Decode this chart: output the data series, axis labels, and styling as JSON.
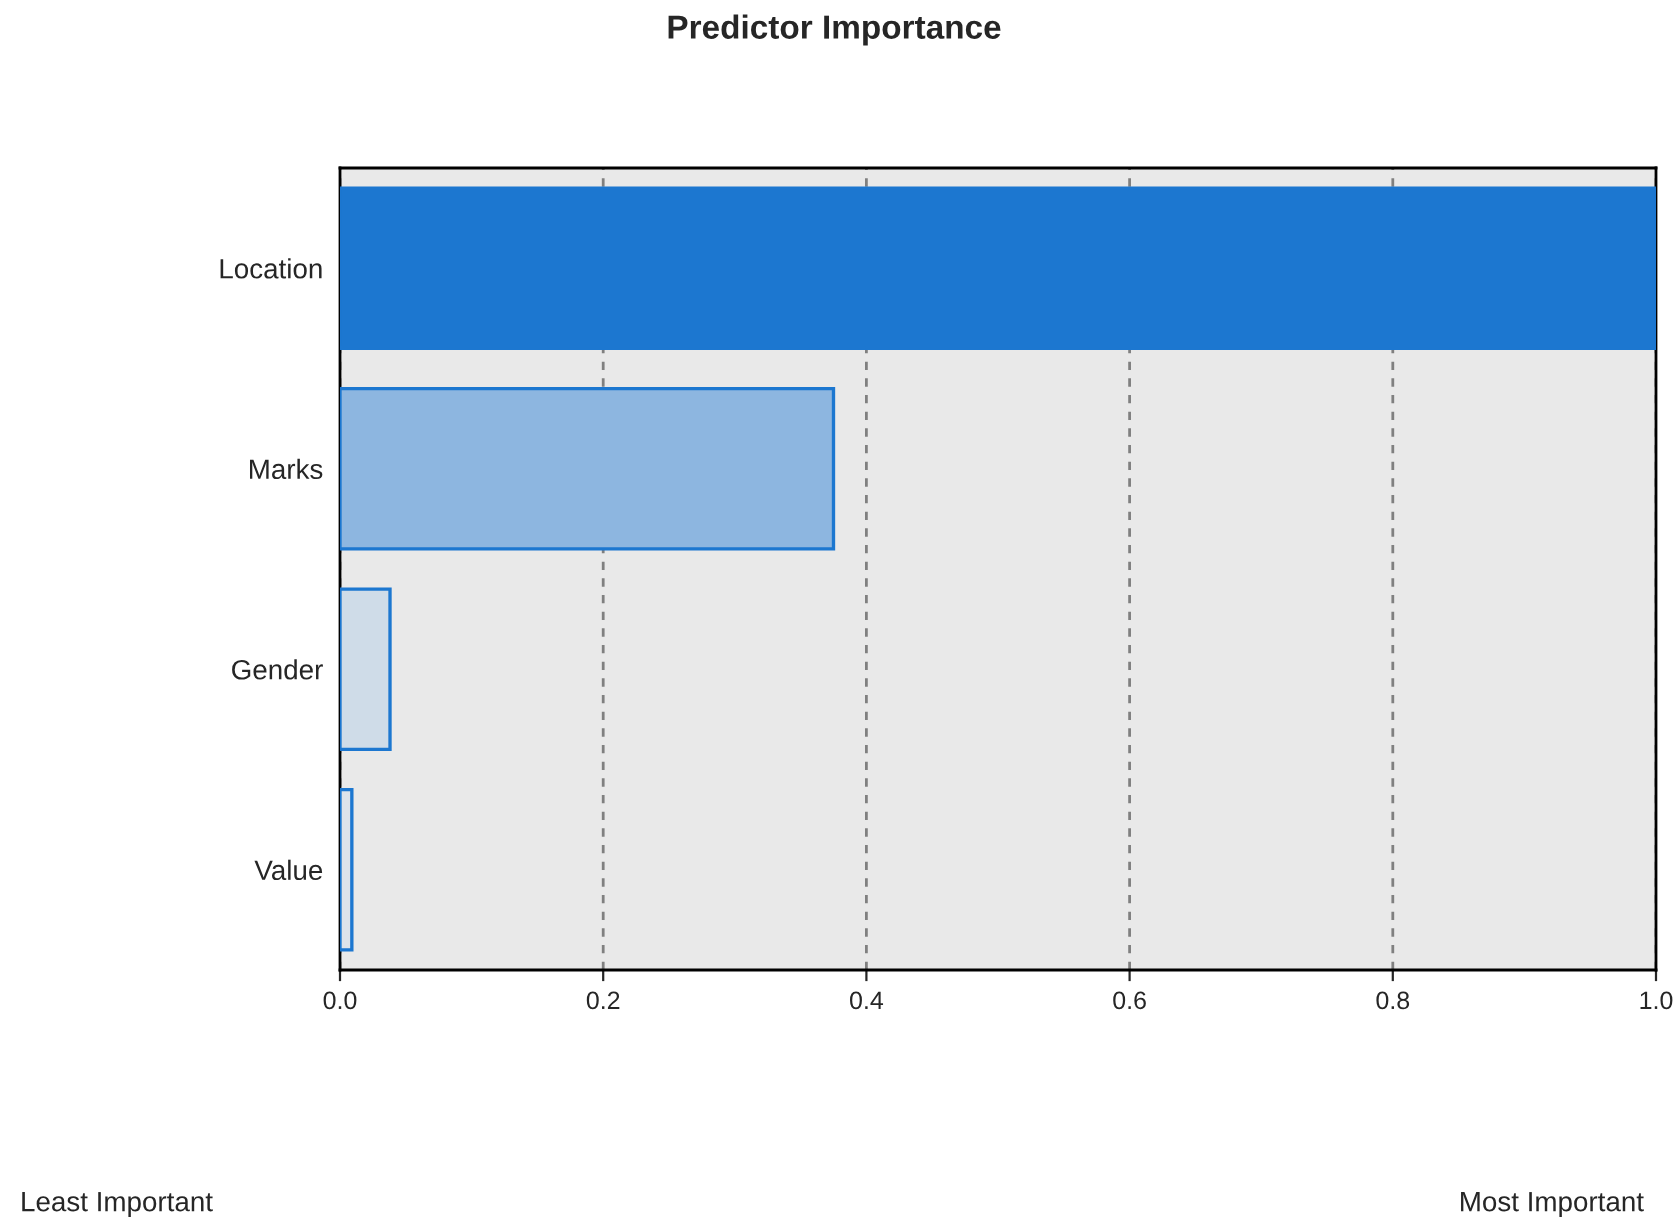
{
  "chart_data": {
    "type": "bar",
    "orientation": "horizontal",
    "title": "Predictor Importance",
    "categories": [
      "Location",
      "Marks",
      "Gender",
      "Value"
    ],
    "values": [
      1.0,
      0.375,
      0.038,
      0.009
    ],
    "colors": [
      "#1c77d0",
      "#8db6e0",
      "#cfdce8",
      "#dde3ea"
    ],
    "xlim": [
      0,
      1.0
    ],
    "xticks": [
      {
        "value": 0,
        "label": "0.0"
      },
      0.2,
      0.4,
      0.6,
      0.8,
      {
        "value": 1.0,
        "label": "1.0"
      }
    ],
    "grid": "x",
    "annotations": [
      "Least Important",
      "Most Important"
    ]
  }
}
